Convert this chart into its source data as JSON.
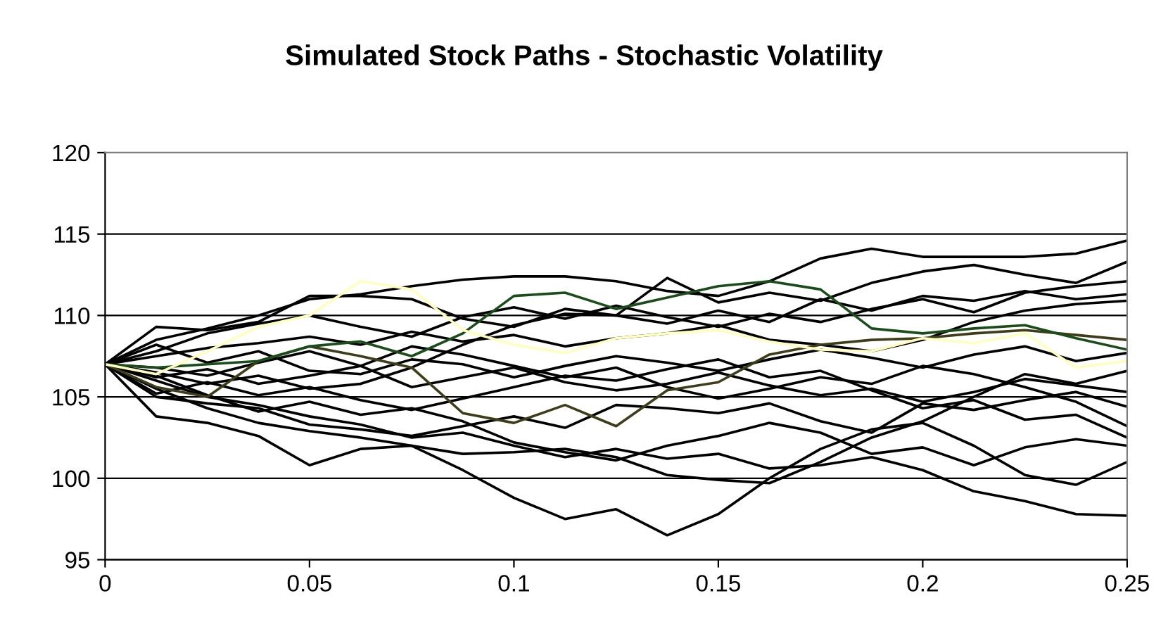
{
  "chart_data": {
    "type": "line",
    "title": "Simulated Stock Paths - Stochastic Volatility",
    "x": [
      0,
      0.0125,
      0.025,
      0.0375,
      0.05,
      0.0625,
      0.075,
      0.0875,
      0.1,
      0.1125,
      0.125,
      0.1375,
      0.15,
      0.1625,
      0.175,
      0.1875,
      0.2,
      0.2125,
      0.225,
      0.2375,
      0.25
    ],
    "xlim": [
      0,
      0.25
    ],
    "xticks": [
      0,
      0.05,
      0.1,
      0.15,
      0.2,
      0.25
    ],
    "ylim": [
      95,
      120
    ],
    "yticks": [
      95,
      100,
      105,
      110,
      115,
      120
    ],
    "grid": "y",
    "legend": false,
    "marker": "none",
    "line_style": "solid",
    "series": [
      {
        "color": "#000000",
        "values": [
          107,
          108.5,
          109.2,
          110,
          111,
          111.3,
          111.8,
          112.2,
          112.4,
          112.4,
          112.1,
          111.5,
          111.2,
          112.1,
          113.5,
          114.1,
          113.6,
          113.6,
          113.6,
          113.8,
          114.6
        ]
      },
      {
        "color": "#000000",
        "values": [
          107,
          109.3,
          109.1,
          109.6,
          111.2,
          111.2,
          111.0,
          109.8,
          109.3,
          110.4,
          110.0,
          112.3,
          110.8,
          111.4,
          110.9,
          112.0,
          112.7,
          113.1,
          112.5,
          112.0,
          113.3
        ]
      },
      {
        "color": "#000000",
        "values": [
          107,
          106.5,
          105.8,
          106.3,
          105.5,
          105.8,
          106.8,
          108.2,
          109.4,
          110.1,
          110.0,
          109.5,
          110.3,
          109.6,
          111.0,
          110.3,
          111.2,
          110.9,
          111.5,
          111.0,
          111.3
        ]
      },
      {
        "color": "#000000",
        "values": [
          107,
          105,
          104.6,
          104.3,
          103.3,
          103.0,
          102.6,
          103.2,
          103.8,
          103.1,
          104.5,
          104.3,
          104.0,
          104.6,
          103.5,
          102.8,
          104.6,
          104.2,
          104.8,
          105.3,
          104.4
        ]
      },
      {
        "color": "#000000",
        "values": [
          107,
          105.5,
          104.3,
          103.4,
          102.9,
          102.5,
          102.0,
          100.5,
          98.8,
          97.5,
          98.1,
          96.5,
          97.8,
          100.0,
          101.8,
          103.0,
          103.4,
          102.0,
          100.2,
          99.6,
          101.0
        ]
      },
      {
        "color": "#000000",
        "values": [
          107,
          106,
          105,
          104.5,
          103.8,
          103.3,
          102.5,
          102.8,
          102.0,
          101.3,
          101.8,
          101.2,
          101.5,
          100.6,
          100.8,
          101.3,
          100.5,
          99.2,
          98.6,
          97.8,
          97.7
        ]
      },
      {
        "color": "#000000",
        "values": [
          107,
          103.8,
          103.4,
          102.6,
          100.8,
          101.8,
          102.0,
          101.5,
          101.6,
          101.8,
          101.3,
          100.2,
          99.9,
          99.7,
          101.0,
          102.5,
          103.5,
          105.0,
          106.4,
          105.8,
          106.6
        ]
      },
      {
        "color": "#000000",
        "values": [
          107,
          107.5,
          108.0,
          108.3,
          108.7,
          108.2,
          109.0,
          108.4,
          108.8,
          108.1,
          108.6,
          108.9,
          109.4,
          108.5,
          108.2,
          107.8,
          108.5,
          109.6,
          110.3,
          110.7,
          110.9
        ]
      },
      {
        "color": "#000000",
        "values": [
          107,
          106.2,
          106.7,
          105.8,
          106.3,
          106.9,
          105.6,
          106.2,
          106.8,
          105.9,
          105.4,
          105.8,
          106.5,
          105.7,
          105.1,
          105.5,
          104.7,
          105.3,
          106.1,
          105.7,
          105.3
        ]
      },
      {
        "color": "#000000",
        "values": [
          107,
          108.2,
          107.1,
          107.8,
          106.6,
          106.4,
          107.3,
          107.0,
          106.2,
          106.9,
          107.5,
          107.1,
          106.6,
          107.3,
          107.9,
          107.4,
          106.8,
          107.6,
          108.1,
          107.2,
          107.7
        ]
      },
      {
        "color": "#000000",
        "values": [
          107,
          105.2,
          105.9,
          105.1,
          105.6,
          104.8,
          104.2,
          104.9,
          105.6,
          106.3,
          106.0,
          106.7,
          107.3,
          106.2,
          106.6,
          105.4,
          104.3,
          104.8,
          103.6,
          103.9,
          102.5
        ]
      },
      {
        "color": "#000000",
        "values": [
          107,
          107.8,
          108.9,
          109.5,
          110.0,
          109.3,
          108.7,
          109.9,
          110.5,
          109.8,
          110.6,
          109.9,
          109.3,
          110.1,
          109.6,
          110.4,
          111.0,
          110.2,
          111.4,
          111.8,
          112.1
        ]
      },
      {
        "color": "#000000",
        "values": [
          107,
          106.8,
          106.3,
          107.1,
          107.8,
          106.9,
          108.1,
          107.6,
          106.9,
          106.2,
          106.8,
          105.6,
          104.9,
          105.5,
          106.2,
          105.8,
          106.9,
          106.4,
          105.6,
          104.7,
          103.2
        ]
      },
      {
        "color": "#000000",
        "values": [
          107,
          106.3,
          105.1,
          104.1,
          104.7,
          103.9,
          104.3,
          103.5,
          102.2,
          101.6,
          101.1,
          102.0,
          102.6,
          103.4,
          102.8,
          101.5,
          101.9,
          100.8,
          101.9,
          102.4,
          102.0
        ]
      },
      {
        "color": "#3d3d1a",
        "values": [
          107,
          105.6,
          105.0,
          107.2,
          108.1,
          107.5,
          106.8,
          104.0,
          103.4,
          104.5,
          103.2,
          105.4,
          105.9,
          107.6,
          108.2,
          108.5,
          108.6,
          108.9,
          109.1,
          108.8,
          108.5
        ]
      },
      {
        "color": "#1a4d1a",
        "values": [
          107,
          106.8,
          107.0,
          107.2,
          108.1,
          108.4,
          107.5,
          108.9,
          111.2,
          111.4,
          110.4,
          111.1,
          111.8,
          112.1,
          111.6,
          109.2,
          108.9,
          109.2,
          109.4,
          108.6,
          107.9
        ]
      },
      {
        "color": "#ffffc0",
        "values": [
          107,
          106.4,
          107.8,
          109.3,
          110,
          112.1,
          111.6,
          109.1,
          108.2,
          107.7,
          108.6,
          108.9,
          109.1,
          108.4,
          107.9,
          107.8,
          108.6,
          108.3,
          108.9,
          106.8,
          107.2
        ]
      }
    ]
  }
}
